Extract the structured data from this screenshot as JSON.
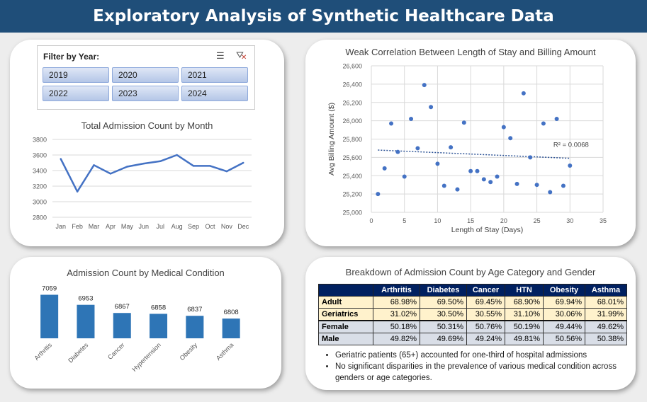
{
  "header": {
    "title": "Exploratory Analysis of Synthetic Healthcare Data"
  },
  "slicer": {
    "label": "Filter by Year:",
    "multiselect_icon": "multi-select-icon",
    "clear_icon": "clear-filter-icon",
    "years": [
      "2019",
      "2020",
      "2021",
      "2022",
      "2023",
      "2024"
    ]
  },
  "colors": {
    "header": "#1f4e79",
    "series": "#4472c4",
    "bar": "#2e75b6",
    "table_header": "#002060",
    "age_rows": "#fff2cc",
    "gender_rows": "#d9dee7"
  },
  "chart_data": [
    {
      "type": "line",
      "title": "Total Admission Count by Month",
      "categories": [
        "Jan",
        "Feb",
        "Mar",
        "Apr",
        "May",
        "Jun",
        "Jul",
        "Aug",
        "Sep",
        "Oct",
        "Nov",
        "Dec"
      ],
      "values": [
        3550,
        3130,
        3470,
        3360,
        3450,
        3490,
        3520,
        3600,
        3460,
        3460,
        3390,
        3500
      ],
      "yticks": [
        "2800",
        "3000",
        "3200",
        "3400",
        "3600",
        "3800"
      ],
      "ylim": [
        2800,
        3800
      ],
      "grid": true
    },
    {
      "type": "scatter",
      "title": "Weak Correlation Between Length of Stay and Billing Amount",
      "xlabel": "Length of Stay (Days)",
      "ylabel": "Avg Billing Amount ($)",
      "xlim": [
        0,
        35
      ],
      "ylim": [
        25000,
        26600
      ],
      "xticks": [
        "0",
        "5",
        "10",
        "15",
        "20",
        "25",
        "30",
        "35"
      ],
      "yticks": [
        "25,000",
        "25,200",
        "25,400",
        "25,600",
        "25,800",
        "26,000",
        "26,200",
        "26,400",
        "26,600"
      ],
      "x": [
        1,
        2,
        3,
        4,
        5,
        6,
        7,
        8,
        9,
        10,
        11,
        12,
        13,
        14,
        15,
        16,
        17,
        18,
        19,
        20,
        21,
        22,
        23,
        24,
        25,
        26,
        27,
        28,
        29,
        30
      ],
      "y": [
        25200,
        25480,
        25970,
        25660,
        25390,
        26020,
        25700,
        26390,
        26150,
        25530,
        25290,
        25710,
        25250,
        25980,
        25450,
        25450,
        25360,
        25330,
        25390,
        25930,
        25810,
        25310,
        26300,
        25600,
        25300,
        25970,
        25220,
        26020,
        25290,
        25510
      ],
      "trendline": {
        "type": "linear",
        "y_start": 25680,
        "y_end": 25590,
        "label": "R² = 0.0068"
      },
      "grid": true
    },
    {
      "type": "bar",
      "title": "Admission Count by Medical Condition",
      "categories": [
        "Arthritis",
        "Diabetes",
        "Cancer",
        "Hypertension",
        "Obesity",
        "Asthma"
      ],
      "values": [
        7059,
        6953,
        6867,
        6858,
        6837,
        6808
      ],
      "data_labels": [
        "7059",
        "6953",
        "6867",
        "6858",
        "6837",
        "6808"
      ],
      "ylim": [
        6600,
        7100
      ]
    }
  ],
  "breakdown": {
    "title": "Breakdown of Admission Count by Age Category and Gender",
    "columns": [
      "Arthritis",
      "Diabetes",
      "Cancer",
      "HTN",
      "Obesity",
      "Asthma"
    ],
    "rows": [
      {
        "label": "Adult",
        "group": "age",
        "values": [
          "68.98%",
          "69.50%",
          "69.45%",
          "68.90%",
          "69.94%",
          "68.01%"
        ]
      },
      {
        "label": "Geriatrics",
        "group": "age",
        "values": [
          "31.02%",
          "30.50%",
          "30.55%",
          "31.10%",
          "30.06%",
          "31.99%"
        ]
      },
      {
        "label": "Female",
        "group": "gen",
        "values": [
          "50.18%",
          "50.31%",
          "50.76%",
          "50.19%",
          "49.44%",
          "49.62%"
        ]
      },
      {
        "label": "Male",
        "group": "gen",
        "values": [
          "49.82%",
          "49.69%",
          "49.24%",
          "49.81%",
          "50.56%",
          "50.38%"
        ]
      }
    ],
    "notes": [
      "Geriatric patients (65+) accounted for one-third of hospital admissions",
      "No significant disparities in the prevalence of various medical condition across genders or age categories."
    ]
  }
}
